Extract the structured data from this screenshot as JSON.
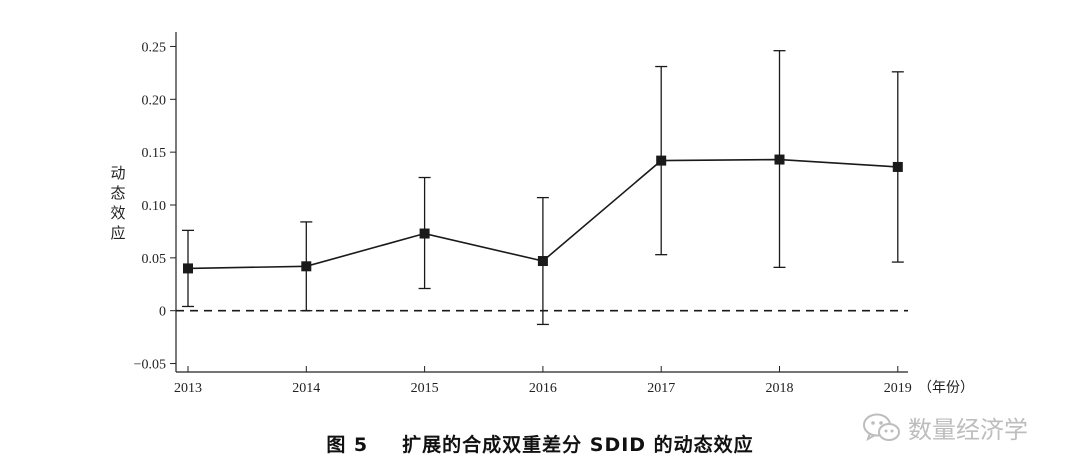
{
  "chart_data": {
    "type": "line",
    "title": "",
    "xlabel": "",
    "x_unit_label": "（年份）",
    "ylabel": "动态效应",
    "categories": [
      "2013",
      "2014",
      "2015",
      "2016",
      "2017",
      "2018",
      "2019"
    ],
    "series": [
      {
        "name": "动态效应",
        "values": [
          0.04,
          0.042,
          0.073,
          0.047,
          0.142,
          0.143,
          0.136
        ],
        "ci_lower": [
          0.004,
          0.0,
          0.021,
          -0.013,
          0.053,
          0.041,
          0.046
        ],
        "ci_upper": [
          0.076,
          0.084,
          0.126,
          0.107,
          0.231,
          0.246,
          0.226
        ]
      }
    ],
    "yticks": [
      0.25,
      0.2,
      0.15,
      0.1,
      0.05,
      0,
      -0.05
    ],
    "ytick_labels": [
      "0.25",
      "0.20",
      "0.15",
      "0.10",
      "0.05",
      "0",
      "−0.05"
    ],
    "ylim": [
      -0.058,
      0.258
    ],
    "reference_line": 0,
    "grid": false
  },
  "caption": {
    "figure_number": "图 5",
    "text": "扩展的合成双重差分 SDID 的动态效应"
  },
  "watermark": {
    "text": "数量经济学",
    "icon": "wechat-icon"
  },
  "colors": {
    "line": "#1a1a1a",
    "watermark": "#bdbdbd"
  }
}
